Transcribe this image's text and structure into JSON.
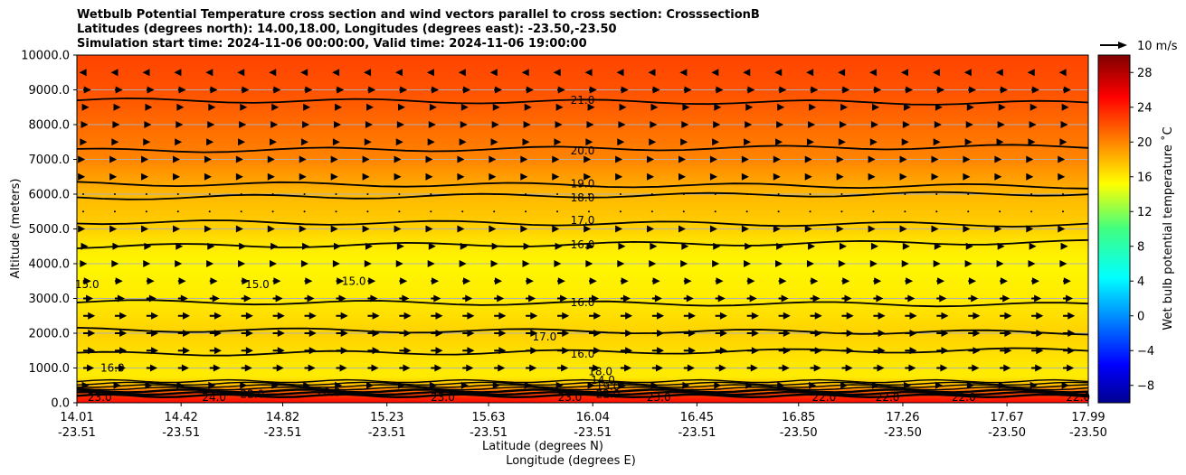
{
  "chart_data": {
    "type": "heatmap",
    "title_lines": [
      "Wetbulb Potential Temperature cross section and wind vectors parallel to cross section: CrosssectionB",
      "Latitudes (degrees north): 14.00,18.00, Longitudes (degrees east): -23.50,-23.50",
      "Simulation start time: 2024-11-06 00:00:00, Valid time: 2024-11-06 19:00:00"
    ],
    "ylabel": "Altitude (meters)",
    "xlabel_lat": "Latitude (degrees N)",
    "xlabel_lon": "Longitude (degrees E)",
    "ylim": [
      0,
      10000
    ],
    "y_ticks": [
      "0.0",
      "1000.0",
      "2000.0",
      "3000.0",
      "4000.0",
      "5000.0",
      "6000.0",
      "7000.0",
      "8000.0",
      "9000.0",
      "10000.0"
    ],
    "x_ticks_lat": [
      "14.01",
      "14.42",
      "14.82",
      "15.23",
      "15.63",
      "16.04",
      "16.45",
      "16.85",
      "17.26",
      "17.67",
      "17.99"
    ],
    "x_ticks_lon": [
      "-23.51",
      "-23.51",
      "-23.51",
      "-23.51",
      "-23.51",
      "-23.51",
      "-23.51",
      "-23.50",
      "-23.50",
      "-23.50",
      "-23.50"
    ],
    "grid": "horizontal",
    "colorbar": {
      "label": "Wet bulb potential temperature ˚C",
      "range": [
        -10,
        30
      ],
      "ticks": [
        "−8",
        "−4",
        "0",
        "4",
        "8",
        "12",
        "16",
        "20",
        "24",
        "28"
      ],
      "colormap": "jet"
    },
    "wind_key": {
      "label": "10 m/s",
      "color": "#000000"
    },
    "temperature_by_altitude": {
      "altitude_m": [
        0,
        250,
        500,
        750,
        1000,
        1500,
        2000,
        2500,
        3000,
        4000,
        4500,
        5000,
        5500,
        6000,
        6500,
        7000,
        7500,
        8000,
        9000,
        10000
      ],
      "value_c": [
        25,
        23,
        18,
        16,
        16,
        16.5,
        17,
        16.5,
        16,
        15.5,
        16,
        17,
        17.5,
        18,
        19,
        20,
        20.5,
        21,
        22,
        22.5
      ]
    },
    "contour_lines": [
      {
        "label": "21.0",
        "altitude_m": 8700
      },
      {
        "label": "20.0",
        "altitude_m": 7250
      },
      {
        "label": "19.0",
        "altitude_m": 6300
      },
      {
        "label": "18.0",
        "altitude_m": 5900
      },
      {
        "label": "17.0",
        "altitude_m": 5200
      },
      {
        "label": "16.0",
        "altitude_m": 4500
      },
      {
        "label": "16.0",
        "altitude_m": 2900
      },
      {
        "label": "16.0",
        "altitude_m": 1400
      },
      {
        "label": "17.0",
        "altitude_m": 2100
      }
    ],
    "contour_labels": [
      {
        "label": "21.0",
        "lat": 16.0,
        "alt": 8700
      },
      {
        "label": "20.0",
        "lat": 16.0,
        "alt": 7250
      },
      {
        "label": "19.0",
        "lat": 16.0,
        "alt": 6300
      },
      {
        "label": "18.0",
        "lat": 16.0,
        "alt": 5900
      },
      {
        "label": "17.0",
        "lat": 16.0,
        "alt": 5250
      },
      {
        "label": "16.0",
        "lat": 16.0,
        "alt": 4550
      },
      {
        "label": "16.0",
        "lat": 16.0,
        "alt": 2880
      },
      {
        "label": "16.0",
        "lat": 16.0,
        "alt": 1400
      },
      {
        "label": "17.0",
        "lat": 15.85,
        "alt": 1900
      },
      {
        "label": "15.0",
        "lat": 14.05,
        "alt": 3400
      },
      {
        "label": "15.0",
        "lat": 14.72,
        "alt": 3400
      },
      {
        "label": "15.0",
        "lat": 15.1,
        "alt": 3500
      },
      {
        "label": "16.0",
        "lat": 14.15,
        "alt": 1000
      },
      {
        "label": "23.0",
        "lat": 14.1,
        "alt": 150
      },
      {
        "label": "24.0",
        "lat": 14.55,
        "alt": 150
      },
      {
        "label": "22.0",
        "lat": 14.7,
        "alt": 250
      },
      {
        "label": "20.0",
        "lat": 15.0,
        "alt": 300
      },
      {
        "label": "23.0",
        "lat": 15.45,
        "alt": 150
      },
      {
        "label": "23.0",
        "lat": 15.95,
        "alt": 150
      },
      {
        "label": "22.0",
        "lat": 16.1,
        "alt": 250
      },
      {
        "label": "14.0",
        "lat": 16.08,
        "alt": 650
      },
      {
        "label": "19.0",
        "lat": 16.1,
        "alt": 470
      },
      {
        "label": "18.0",
        "lat": 16.07,
        "alt": 900
      },
      {
        "label": "23.0",
        "lat": 16.3,
        "alt": 150
      },
      {
        "label": "22.0",
        "lat": 16.95,
        "alt": 150
      },
      {
        "label": "22.0",
        "lat": 17.2,
        "alt": 150
      },
      {
        "label": "22.0",
        "lat": 17.5,
        "alt": 150
      },
      {
        "label": "22.0",
        "lat": 17.95,
        "alt": 150
      }
    ],
    "wind_vectors": {
      "rows": [
        {
          "altitude_m": 9500,
          "u_ms": -2
        },
        {
          "altitude_m": 9000,
          "u_ms": 4
        },
        {
          "altitude_m": 8500,
          "u_ms": 3
        },
        {
          "altitude_m": 8000,
          "u_ms": 2.5
        },
        {
          "altitude_m": 7500,
          "u_ms": 2
        },
        {
          "altitude_m": 7000,
          "u_ms": 1
        },
        {
          "altitude_m": 6500,
          "u_ms": 1
        },
        {
          "altitude_m": 6000,
          "u_ms": 0.5
        },
        {
          "altitude_m": 5500,
          "u_ms": 0.5
        },
        {
          "altitude_m": 5000,
          "u_ms": 1
        },
        {
          "altitude_m": 4500,
          "u_ms": 2.5
        },
        {
          "altitude_m": 4000,
          "u_ms": 2
        },
        {
          "altitude_m": 3500,
          "u_ms": 4
        },
        {
          "altitude_m": 3000,
          "u_ms": 5
        },
        {
          "altitude_m": 2500,
          "u_ms": 6
        },
        {
          "altitude_m": 2000,
          "u_ms": 6
        },
        {
          "altitude_m": 1500,
          "u_ms": 6
        },
        {
          "altitude_m": 1000,
          "u_ms": 5.5
        },
        {
          "altitude_m": 500,
          "u_ms": 3
        }
      ],
      "lat_count": 32
    }
  }
}
